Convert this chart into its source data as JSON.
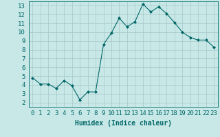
{
  "x": [
    0,
    1,
    2,
    3,
    4,
    5,
    6,
    7,
    8,
    9,
    10,
    11,
    12,
    13,
    14,
    15,
    16,
    17,
    18,
    19,
    20,
    21,
    22,
    23
  ],
  "y": [
    4.8,
    4.1,
    4.1,
    3.6,
    4.5,
    3.9,
    2.3,
    3.2,
    3.2,
    8.6,
    9.9,
    11.6,
    10.6,
    11.2,
    13.2,
    12.3,
    12.9,
    12.1,
    11.1,
    10.0,
    9.4,
    9.1,
    9.1,
    8.3
  ],
  "line_color": "#006666",
  "marker": "D",
  "marker_size": 2,
  "xlabel": "Humidex (Indice chaleur)",
  "xlim": [
    -0.5,
    23.5
  ],
  "ylim": [
    1.5,
    13.5
  ],
  "yticks": [
    2,
    3,
    4,
    5,
    6,
    7,
    8,
    9,
    10,
    11,
    12,
    13
  ],
  "xticks": [
    0,
    1,
    2,
    3,
    4,
    5,
    6,
    7,
    8,
    9,
    10,
    11,
    12,
    13,
    14,
    15,
    16,
    17,
    18,
    19,
    20,
    21,
    22,
    23
  ],
  "bg_color": "#c8e8e8",
  "grid_color": "#a8c8c8",
  "text_color": "#006666",
  "font_size": 6.5,
  "xlabel_font_size": 7,
  "linewidth": 0.8
}
